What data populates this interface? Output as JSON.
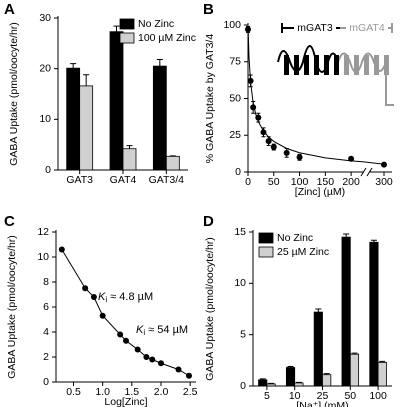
{
  "chart_data": [
    {
      "type": "bar",
      "panel": "A",
      "ylabel": "GABA Uptake (pmol/oocyte/hr)",
      "categories": [
        "GAT3",
        "GAT4",
        "GAT3/4"
      ],
      "series": [
        {
          "name": "No Zinc",
          "color": "#000000",
          "values": [
            20.1,
            27.3,
            20.5
          ],
          "errors": [
            0.9,
            1.1,
            1.3
          ]
        },
        {
          "name": "100 µM Zinc",
          "color": "#d0d0d0",
          "values": [
            16.6,
            4.2,
            2.7
          ],
          "errors": [
            2.2,
            0.6,
            0.1
          ]
        }
      ],
      "ylim": [
        0,
        30
      ],
      "yticks": [
        0,
        10,
        20,
        30
      ],
      "legend": "upper right"
    },
    {
      "type": "scatter",
      "panel": "B",
      "ylabel": "% GABA Uptake by GAT3/4",
      "xlabel": "[Zinc] (µM)",
      "x": [
        0,
        5,
        10,
        20,
        30,
        40,
        50,
        75,
        100,
        200,
        300
      ],
      "values": [
        97,
        62,
        44,
        37,
        27,
        21,
        17,
        13,
        10,
        9,
        5
      ],
      "errors": [
        2,
        4,
        4,
        3,
        3,
        3,
        2,
        3,
        2,
        1,
        1
      ],
      "fit": {
        "x": [
          0,
          2,
          5,
          10,
          15,
          20,
          30,
          40,
          50,
          75,
          100,
          150,
          200,
          225,
          300
        ],
        "values": [
          100,
          77.8,
          61.0,
          47.0,
          39.4,
          34.3,
          27.9,
          23.8,
          20.8,
          16.0,
          13.1,
          9.6,
          7.6,
          6.9,
          5.3
        ]
      },
      "xlim": [
        0,
        310
      ],
      "xbreak": [
        225,
        285
      ],
      "xticks": [
        0,
        50,
        100,
        150,
        200,
        300
      ],
      "ylim": [
        0,
        100
      ],
      "yticks": [
        0,
        25,
        50,
        75,
        100
      ],
      "inset": {
        "labels": [
          "mGAT3",
          "mGAT4"
        ]
      }
    },
    {
      "type": "scatter",
      "panel": "C",
      "ylabel": "GABA Uptake (pmol/oocyte/hr)",
      "xlabel": "Log[Zinc]",
      "x": [
        0.3,
        0.7,
        0.85,
        1.0,
        1.3,
        1.4,
        1.6,
        1.75,
        1.85,
        2.0,
        2.3,
        2.48
      ],
      "values": [
        10.6,
        7.5,
        6.8,
        5.3,
        3.8,
        3.3,
        2.6,
        2.0,
        1.8,
        1.5,
        1.0,
        0.5
      ],
      "line": true,
      "xlim": [
        0.2,
        2.6
      ],
      "xticks": [
        0.5,
        {
          "value": 1,
          "label": "1.0"
        },
        1.5,
        {
          "value": 2,
          "label": "2.0"
        },
        2.5
      ],
      "ylim": [
        0,
        12
      ],
      "yticks": [
        0,
        2,
        4,
        6,
        8,
        10,
        12
      ],
      "annotations": [
        [
          "K",
          "i",
          " ≈ 4.8 µM"
        ],
        [
          "K",
          "i",
          " ≈ 54 µM"
        ]
      ]
    },
    {
      "type": "bar",
      "panel": "D",
      "ylabel": "GABA Uptake (pmol/oocyte/hr)",
      "xlabel": "[Na⁺] (mM)",
      "categories": [
        "5",
        "10",
        "25",
        "50",
        "100"
      ],
      "series": [
        {
          "name": "No Zinc",
          "color": "#000000",
          "values": [
            0.6,
            1.8,
            7.2,
            14.5,
            14.0
          ],
          "errors": [
            0.1,
            0.1,
            0.3,
            0.3,
            0.2
          ]
        },
        {
          "name": "25 µM Zinc",
          "color": "#d0d0d0",
          "values": [
            0.2,
            0.3,
            1.1,
            3.1,
            2.3
          ],
          "errors": [
            0.05,
            0.05,
            0.1,
            0.1,
            0.1
          ]
        }
      ],
      "ylim": [
        0,
        15
      ],
      "yticks": [
        0,
        5,
        10,
        15
      ],
      "legend": "upper left"
    }
  ]
}
